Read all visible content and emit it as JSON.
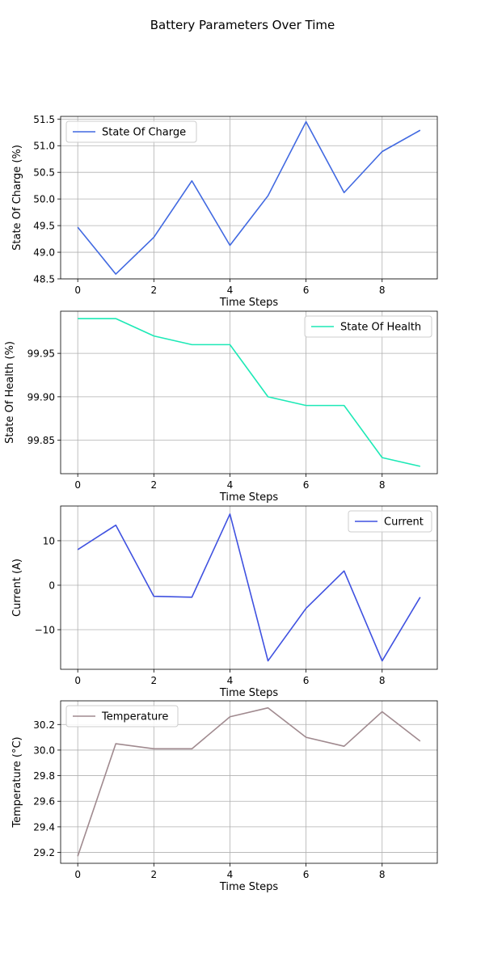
{
  "figure": {
    "title": "Battery Parameters Over Time"
  },
  "chart_data": [
    {
      "type": "line",
      "title": "",
      "xlabel": "Time Steps",
      "ylabel": "State Of Charge (%)",
      "x": [
        0,
        1,
        2,
        3,
        4,
        5,
        6,
        7,
        8,
        9
      ],
      "series": [
        {
          "name": "State Of Charge",
          "color": "#4169e1",
          "values": [
            49.47,
            48.59,
            49.28,
            50.34,
            49.13,
            50.06,
            51.45,
            50.12,
            50.89,
            51.29
          ]
        }
      ],
      "xlim": [
        -0.45,
        9.45
      ],
      "ylim": [
        48.5,
        51.55
      ],
      "xticks": [
        0,
        2,
        4,
        6,
        8
      ],
      "yticks": [
        48.5,
        49.0,
        49.5,
        50.0,
        50.5,
        51.0,
        51.5
      ],
      "ytick_labels": [
        "48.5",
        "49.0",
        "49.5",
        "50.0",
        "50.5",
        "51.0",
        "51.5"
      ],
      "grid": true,
      "legend": "upper-left"
    },
    {
      "type": "line",
      "title": "",
      "xlabel": "Time Steps",
      "ylabel": "State Of Health (%)",
      "x": [
        0,
        1,
        2,
        3,
        4,
        5,
        6,
        7,
        8,
        9
      ],
      "series": [
        {
          "name": "State Of Health",
          "color": "#1de9b6",
          "values": [
            99.99,
            99.99,
            99.97,
            99.96,
            99.96,
            99.9,
            99.89,
            99.89,
            99.83,
            99.82
          ]
        }
      ],
      "xlim": [
        -0.45,
        9.45
      ],
      "ylim": [
        99.8115,
        99.9985
      ],
      "xticks": [
        0,
        2,
        4,
        6,
        8
      ],
      "yticks": [
        99.85,
        99.9,
        99.95
      ],
      "ytick_labels": [
        "99.85",
        "99.90",
        "99.95"
      ],
      "grid": true,
      "legend": "upper-right"
    },
    {
      "type": "line",
      "title": "",
      "xlabel": "Time Steps",
      "ylabel": "Current (A)",
      "x": [
        0,
        1,
        2,
        3,
        4,
        5,
        6,
        7,
        8,
        9
      ],
      "series": [
        {
          "name": "Current",
          "color": "#3f51e0",
          "values": [
            8.0,
            13.5,
            -2.5,
            -2.7,
            16.0,
            -17.0,
            -5.2,
            3.2,
            -17.0,
            -2.7
          ]
        }
      ],
      "xlim": [
        -0.45,
        9.45
      ],
      "ylim": [
        -18.9,
        17.8
      ],
      "xticks": [
        0,
        2,
        4,
        6,
        8
      ],
      "yticks": [
        -10,
        0,
        10
      ],
      "ytick_labels": [
        "−10",
        "0",
        "10"
      ],
      "grid": true,
      "legend": "upper-right"
    },
    {
      "type": "line",
      "title": "",
      "xlabel": "Time Steps",
      "ylabel": "Temperature (°C)",
      "x": [
        0,
        1,
        2,
        3,
        4,
        5,
        6,
        7,
        8,
        9
      ],
      "series": [
        {
          "name": "Temperature",
          "color": "#a08a8f",
          "values": [
            29.17,
            30.05,
            30.01,
            30.01,
            30.26,
            30.33,
            30.1,
            30.03,
            30.3,
            30.07
          ]
        }
      ],
      "xlim": [
        -0.45,
        9.45
      ],
      "ylim": [
        29.115,
        30.385
      ],
      "xticks": [
        0,
        2,
        4,
        6,
        8
      ],
      "yticks": [
        29.2,
        29.4,
        29.6,
        29.8,
        30.0,
        30.2
      ],
      "ytick_labels": [
        "29.2",
        "29.4",
        "29.6",
        "29.8",
        "30.0",
        "30.2"
      ],
      "grid": true,
      "legend": "upper-left"
    }
  ]
}
